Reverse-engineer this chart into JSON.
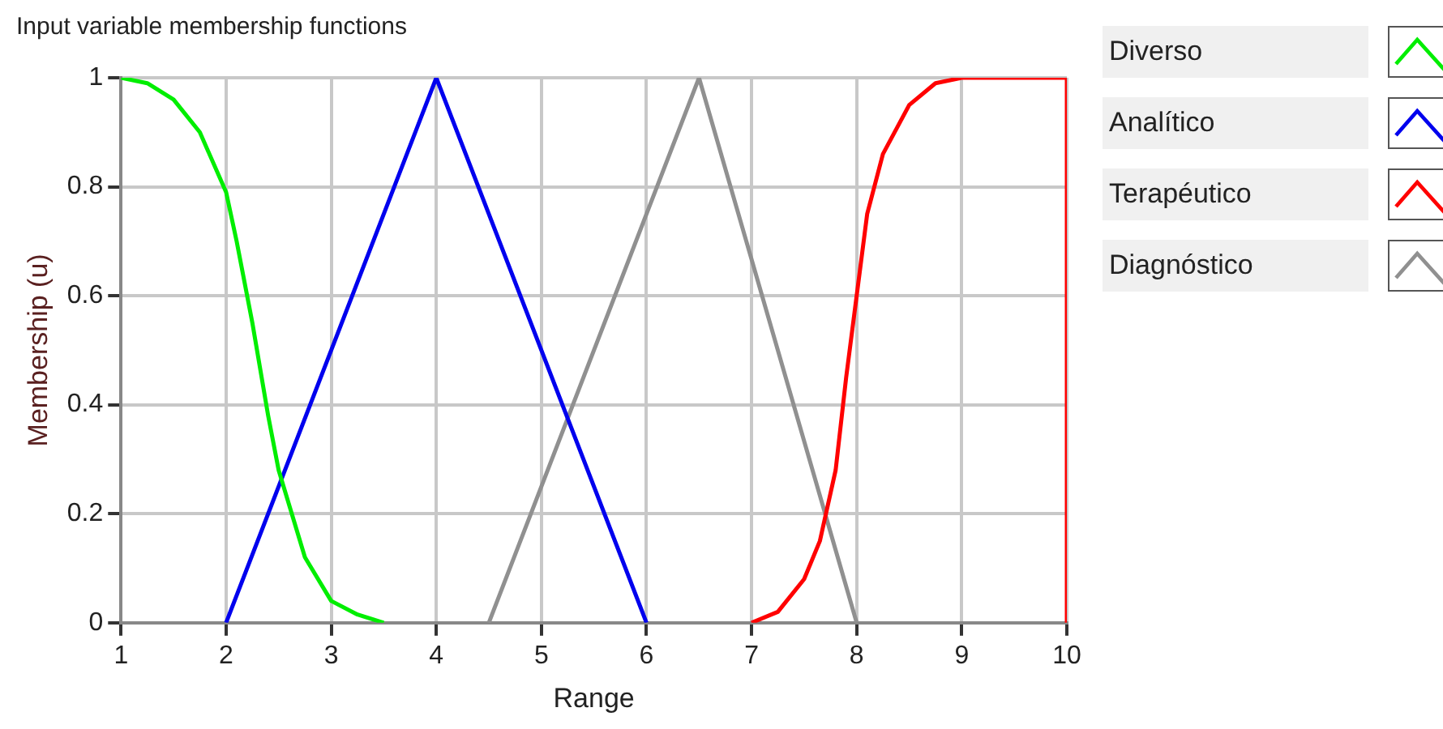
{
  "chart_data": {
    "type": "line",
    "title": "Input variable membership functions",
    "xlabel": "Range",
    "ylabel": "Membership (u)",
    "xlim": [
      1,
      10
    ],
    "xticks": [
      1,
      2,
      3,
      4,
      5,
      6,
      7,
      8,
      9,
      10
    ],
    "ylim": [
      0,
      1
    ],
    "yticks": [
      0,
      0.2,
      0.4,
      0.6,
      0.8,
      1
    ],
    "grid": true,
    "legend": "right",
    "marker": "none",
    "line_style": "solid",
    "series": [
      {
        "name": "Diverso",
        "color": "#00ee00",
        "x": [
          1,
          1.25,
          1.5,
          1.75,
          2,
          2.1,
          2.25,
          2.4,
          2.5,
          2.75,
          3,
          3.25,
          3.5
        ],
        "values": [
          1,
          0.99,
          0.96,
          0.9,
          0.79,
          0.7,
          0.55,
          0.38,
          0.28,
          0.12,
          0.04,
          0.015,
          0
        ]
      },
      {
        "name": "Analítico",
        "color": "#0000ee",
        "x": [
          2,
          4,
          6
        ],
        "values": [
          0,
          1,
          0
        ]
      },
      {
        "name": "Terapéutico",
        "color": "#ff0000",
        "x": [
          7,
          7.25,
          7.5,
          7.65,
          7.8,
          7.9,
          8,
          8.1,
          8.25,
          8.5,
          8.75,
          9,
          10,
          10
        ],
        "values": [
          0,
          0.02,
          0.08,
          0.15,
          0.28,
          0.45,
          0.6,
          0.75,
          0.86,
          0.95,
          0.99,
          1,
          1,
          0
        ]
      },
      {
        "name": "Diagnóstico",
        "color": "#909090",
        "x": [
          4.5,
          6.5,
          8
        ],
        "values": [
          0,
          1,
          0
        ]
      }
    ]
  }
}
